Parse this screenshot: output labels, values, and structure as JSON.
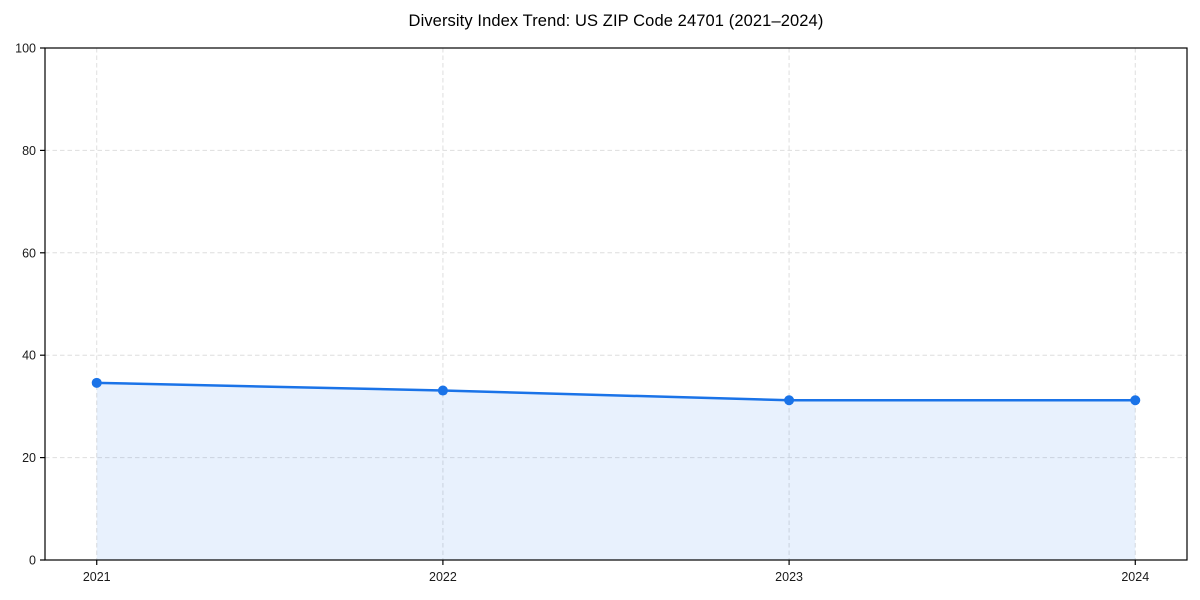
{
  "chart": {
    "title": "Diversity Index Trend: US ZIP Code 24701 (2021–2024)"
  },
  "chart_data": {
    "type": "line",
    "title": "Diversity Index Trend: US ZIP Code 24701 (2021–2024)",
    "categories": [
      "2021",
      "2022",
      "2023",
      "2024"
    ],
    "series": [
      {
        "name": "Diversity Index",
        "values": [
          34.6,
          33.1,
          31.2,
          31.2
        ]
      }
    ],
    "xlabel": "",
    "ylabel": "",
    "ylim": [
      0,
      100
    ],
    "yticks": [
      0,
      20,
      40,
      60,
      80,
      100
    ],
    "xticks": [
      "2021",
      "2022",
      "2023",
      "2024"
    ],
    "grid": true,
    "grid_style": "dashed",
    "legend": "none",
    "area_fill": true,
    "marker": "circle",
    "style": {
      "line_color": "#1a73e8",
      "marker_color": "#1a73e8",
      "fill_color": "#1a73e8",
      "fill_opacity": 0.1,
      "grid_color": "#dedede",
      "axis_color": "#000000",
      "text_color": "#1a1a1a",
      "background": "#ffffff"
    }
  }
}
